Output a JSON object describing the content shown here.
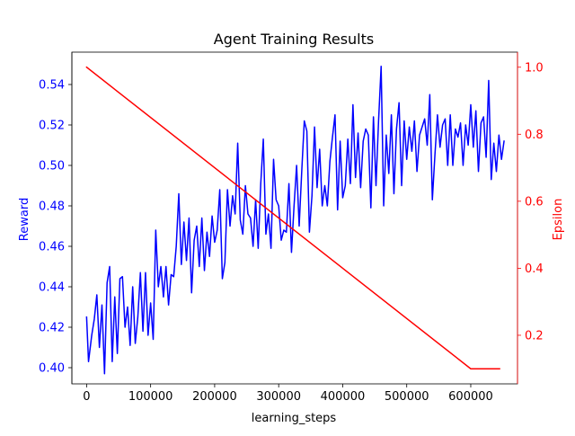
{
  "chart_data": {
    "type": "line",
    "title": "Agent Training Results",
    "xlabel": "learning_steps",
    "ylabel_left": "Reward",
    "ylabel_right": "Epsilon",
    "xlim": [
      -23000,
      673000
    ],
    "ylim_left": [
      0.392,
      0.556
    ],
    "ylim_right": [
      0.055,
      1.045
    ],
    "x_ticks": [
      0,
      100000,
      200000,
      300000,
      400000,
      500000,
      600000
    ],
    "x_tick_labels": [
      "0",
      "100000",
      "200000",
      "300000",
      "400000",
      "500000",
      "600000"
    ],
    "y_left_ticks": [
      0.4,
      0.42,
      0.44,
      0.46,
      0.48,
      0.5,
      0.52,
      0.54
    ],
    "y_left_tick_labels": [
      "0.40",
      "0.42",
      "0.44",
      "0.46",
      "0.48",
      "0.50",
      "0.52",
      "0.54"
    ],
    "y_right_ticks": [
      0.2,
      0.4,
      0.6,
      0.8,
      1.0
    ],
    "y_right_tick_labels": [
      "0.2",
      "0.4",
      "0.6",
      "0.8",
      "1.0"
    ],
    "grid": false,
    "legend": "none",
    "colors": {
      "reward": "#0000ff",
      "epsilon": "#ff0000",
      "axes": "#000000"
    },
    "series": [
      {
        "axis": "left",
        "color": "#0000ff",
        "points": [
          [
            0,
            0.425
          ],
          [
            3000,
            0.403
          ],
          [
            8000,
            0.416
          ],
          [
            12000,
            0.424
          ],
          [
            16000,
            0.436
          ],
          [
            20000,
            0.41
          ],
          [
            24000,
            0.431
          ],
          [
            28000,
            0.397
          ],
          [
            32000,
            0.442
          ],
          [
            36000,
            0.45
          ],
          [
            40000,
            0.403
          ],
          [
            44000,
            0.435
          ],
          [
            48000,
            0.407
          ],
          [
            52000,
            0.444
          ],
          [
            56000,
            0.445
          ],
          [
            60000,
            0.42
          ],
          [
            64000,
            0.43
          ],
          [
            68000,
            0.411
          ],
          [
            72000,
            0.44
          ],
          [
            76000,
            0.412
          ],
          [
            80000,
            0.425
          ],
          [
            84000,
            0.447
          ],
          [
            88000,
            0.418
          ],
          [
            92000,
            0.447
          ],
          [
            96000,
            0.416
          ],
          [
            100000,
            0.432
          ],
          [
            104000,
            0.414
          ],
          [
            108000,
            0.468
          ],
          [
            112000,
            0.44
          ],
          [
            116000,
            0.45
          ],
          [
            120000,
            0.435
          ],
          [
            124000,
            0.45
          ],
          [
            128000,
            0.431
          ],
          [
            132000,
            0.446
          ],
          [
            136000,
            0.445
          ],
          [
            140000,
            0.46
          ],
          [
            144000,
            0.486
          ],
          [
            148000,
            0.451
          ],
          [
            152000,
            0.472
          ],
          [
            156000,
            0.453
          ],
          [
            160000,
            0.474
          ],
          [
            164000,
            0.437
          ],
          [
            168000,
            0.463
          ],
          [
            172000,
            0.47
          ],
          [
            176000,
            0.45
          ],
          [
            180000,
            0.474
          ],
          [
            184000,
            0.448
          ],
          [
            188000,
            0.467
          ],
          [
            192000,
            0.455
          ],
          [
            196000,
            0.475
          ],
          [
            200000,
            0.462
          ],
          [
            204000,
            0.468
          ],
          [
            208000,
            0.488
          ],
          [
            212000,
            0.444
          ],
          [
            216000,
            0.452
          ],
          [
            220000,
            0.488
          ],
          [
            224000,
            0.47
          ],
          [
            228000,
            0.485
          ],
          [
            232000,
            0.476
          ],
          [
            236000,
            0.511
          ],
          [
            240000,
            0.473
          ],
          [
            244000,
            0.466
          ],
          [
            248000,
            0.49
          ],
          [
            252000,
            0.476
          ],
          [
            256000,
            0.474
          ],
          [
            260000,
            0.46
          ],
          [
            264000,
            0.483
          ],
          [
            268000,
            0.459
          ],
          [
            272000,
            0.491
          ],
          [
            276000,
            0.513
          ],
          [
            280000,
            0.466
          ],
          [
            284000,
            0.476
          ],
          [
            288000,
            0.459
          ],
          [
            292000,
            0.503
          ],
          [
            296000,
            0.483
          ],
          [
            300000,
            0.48
          ],
          [
            304000,
            0.463
          ],
          [
            308000,
            0.468
          ],
          [
            312000,
            0.467
          ],
          [
            316000,
            0.491
          ],
          [
            320000,
            0.457
          ],
          [
            324000,
            0.48
          ],
          [
            328000,
            0.5
          ],
          [
            332000,
            0.47
          ],
          [
            336000,
            0.497
          ],
          [
            340000,
            0.522
          ],
          [
            344000,
            0.517
          ],
          [
            348000,
            0.467
          ],
          [
            352000,
            0.485
          ],
          [
            356000,
            0.519
          ],
          [
            360000,
            0.489
          ],
          [
            364000,
            0.508
          ],
          [
            368000,
            0.48
          ],
          [
            372000,
            0.49
          ],
          [
            376000,
            0.48
          ],
          [
            380000,
            0.502
          ],
          [
            384000,
            0.514
          ],
          [
            388000,
            0.525
          ],
          [
            392000,
            0.478
          ],
          [
            396000,
            0.512
          ],
          [
            400000,
            0.484
          ],
          [
            404000,
            0.49
          ],
          [
            408000,
            0.513
          ],
          [
            412000,
            0.491
          ],
          [
            416000,
            0.53
          ],
          [
            420000,
            0.494
          ],
          [
            424000,
            0.516
          ],
          [
            428000,
            0.489
          ],
          [
            432000,
            0.512
          ],
          [
            436000,
            0.518
          ],
          [
            440000,
            0.515
          ],
          [
            444000,
            0.479
          ],
          [
            448000,
            0.524
          ],
          [
            452000,
            0.49
          ],
          [
            456000,
            0.522
          ],
          [
            460000,
            0.549
          ],
          [
            464000,
            0.48
          ],
          [
            468000,
            0.515
          ],
          [
            472000,
            0.496
          ],
          [
            476000,
            0.525
          ],
          [
            480000,
            0.486
          ],
          [
            484000,
            0.518
          ],
          [
            488000,
            0.531
          ],
          [
            492000,
            0.49
          ],
          [
            496000,
            0.522
          ],
          [
            500000,
            0.503
          ],
          [
            504000,
            0.519
          ],
          [
            508000,
            0.507
          ],
          [
            512000,
            0.522
          ],
          [
            516000,
            0.497
          ],
          [
            520000,
            0.515
          ],
          [
            524000,
            0.519
          ],
          [
            528000,
            0.523
          ],
          [
            532000,
            0.51
          ],
          [
            536000,
            0.535
          ],
          [
            540000,
            0.483
          ],
          [
            544000,
            0.505
          ],
          [
            548000,
            0.525
          ],
          [
            552000,
            0.509
          ],
          [
            556000,
            0.52
          ],
          [
            560000,
            0.523
          ],
          [
            564000,
            0.5
          ],
          [
            568000,
            0.525
          ],
          [
            572000,
            0.5
          ],
          [
            576000,
            0.518
          ],
          [
            580000,
            0.514
          ],
          [
            584000,
            0.521
          ],
          [
            588000,
            0.5
          ],
          [
            592000,
            0.52
          ],
          [
            596000,
            0.51
          ],
          [
            600000,
            0.53
          ],
          [
            604000,
            0.509
          ],
          [
            608000,
            0.527
          ],
          [
            612000,
            0.497
          ],
          [
            616000,
            0.521
          ],
          [
            620000,
            0.524
          ],
          [
            624000,
            0.504
          ],
          [
            628000,
            0.542
          ],
          [
            632000,
            0.493
          ],
          [
            636000,
            0.511
          ],
          [
            640000,
            0.497
          ],
          [
            644000,
            0.515
          ],
          [
            648000,
            0.503
          ],
          [
            652000,
            0.512
          ]
        ]
      },
      {
        "axis": "right",
        "color": "#ff0000",
        "points": [
          [
            0,
            1.0
          ],
          [
            600000,
            0.1
          ],
          [
            645000,
            0.1
          ]
        ]
      }
    ]
  }
}
